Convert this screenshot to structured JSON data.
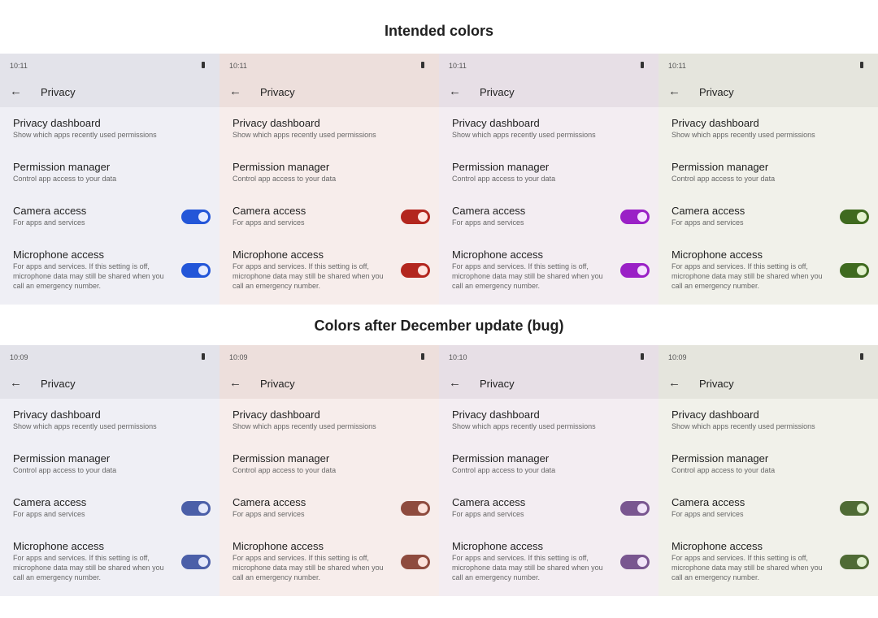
{
  "headings": {
    "top": "Intended colors",
    "bottom": "Colors after December update (bug)"
  },
  "screen": {
    "title": "Privacy",
    "items": [
      {
        "title": "Privacy dashboard",
        "subtitle": "Show which apps recently used permissions"
      },
      {
        "title": "Permission manager",
        "subtitle": "Control app access to your data"
      },
      {
        "title": "Camera access",
        "subtitle": "For apps and services",
        "toggle": true
      },
      {
        "title": "Microphone access",
        "subtitle": "For apps and services. If this setting is off, microphone data may still be shared when you call an emergency number.",
        "toggle": true
      }
    ]
  },
  "rows": [
    {
      "key": "intended",
      "panels": [
        {
          "time": "10:11",
          "bg": "#efeff5",
          "bar": "#e3e3ea",
          "toggle": "#2356d8",
          "thumb": "#e6ecff"
        },
        {
          "time": "10:11",
          "bg": "#f7edeb",
          "bar": "#eddfdc",
          "toggle": "#b3261e",
          "thumb": "#ffe5e0"
        },
        {
          "time": "10:11",
          "bg": "#f3edf2",
          "bar": "#e7dfe6",
          "toggle": "#9a20c6",
          "thumb": "#f6e2ff"
        },
        {
          "time": "10:11",
          "bg": "#f1f1ea",
          "bar": "#e5e5dd",
          "toggle": "#3f6a1f",
          "thumb": "#e3f2cf"
        }
      ]
    },
    {
      "key": "bug",
      "panels": [
        {
          "time": "10:09",
          "bg": "#efeff5",
          "bar": "#e3e3ea",
          "toggle": "#4b5fa8",
          "thumb": "#e4e8fa"
        },
        {
          "time": "10:09",
          "bg": "#f7edeb",
          "bar": "#eddfdc",
          "toggle": "#8e4b3e",
          "thumb": "#fbe2db"
        },
        {
          "time": "10:10",
          "bg": "#f3edf2",
          "bar": "#e7dfe6",
          "toggle": "#795690",
          "thumb": "#f1e4f8"
        },
        {
          "time": "10:09",
          "bg": "#f1f1ea",
          "bar": "#e5e5dd",
          "toggle": "#4f6b35",
          "thumb": "#e0efcf"
        }
      ]
    }
  ]
}
